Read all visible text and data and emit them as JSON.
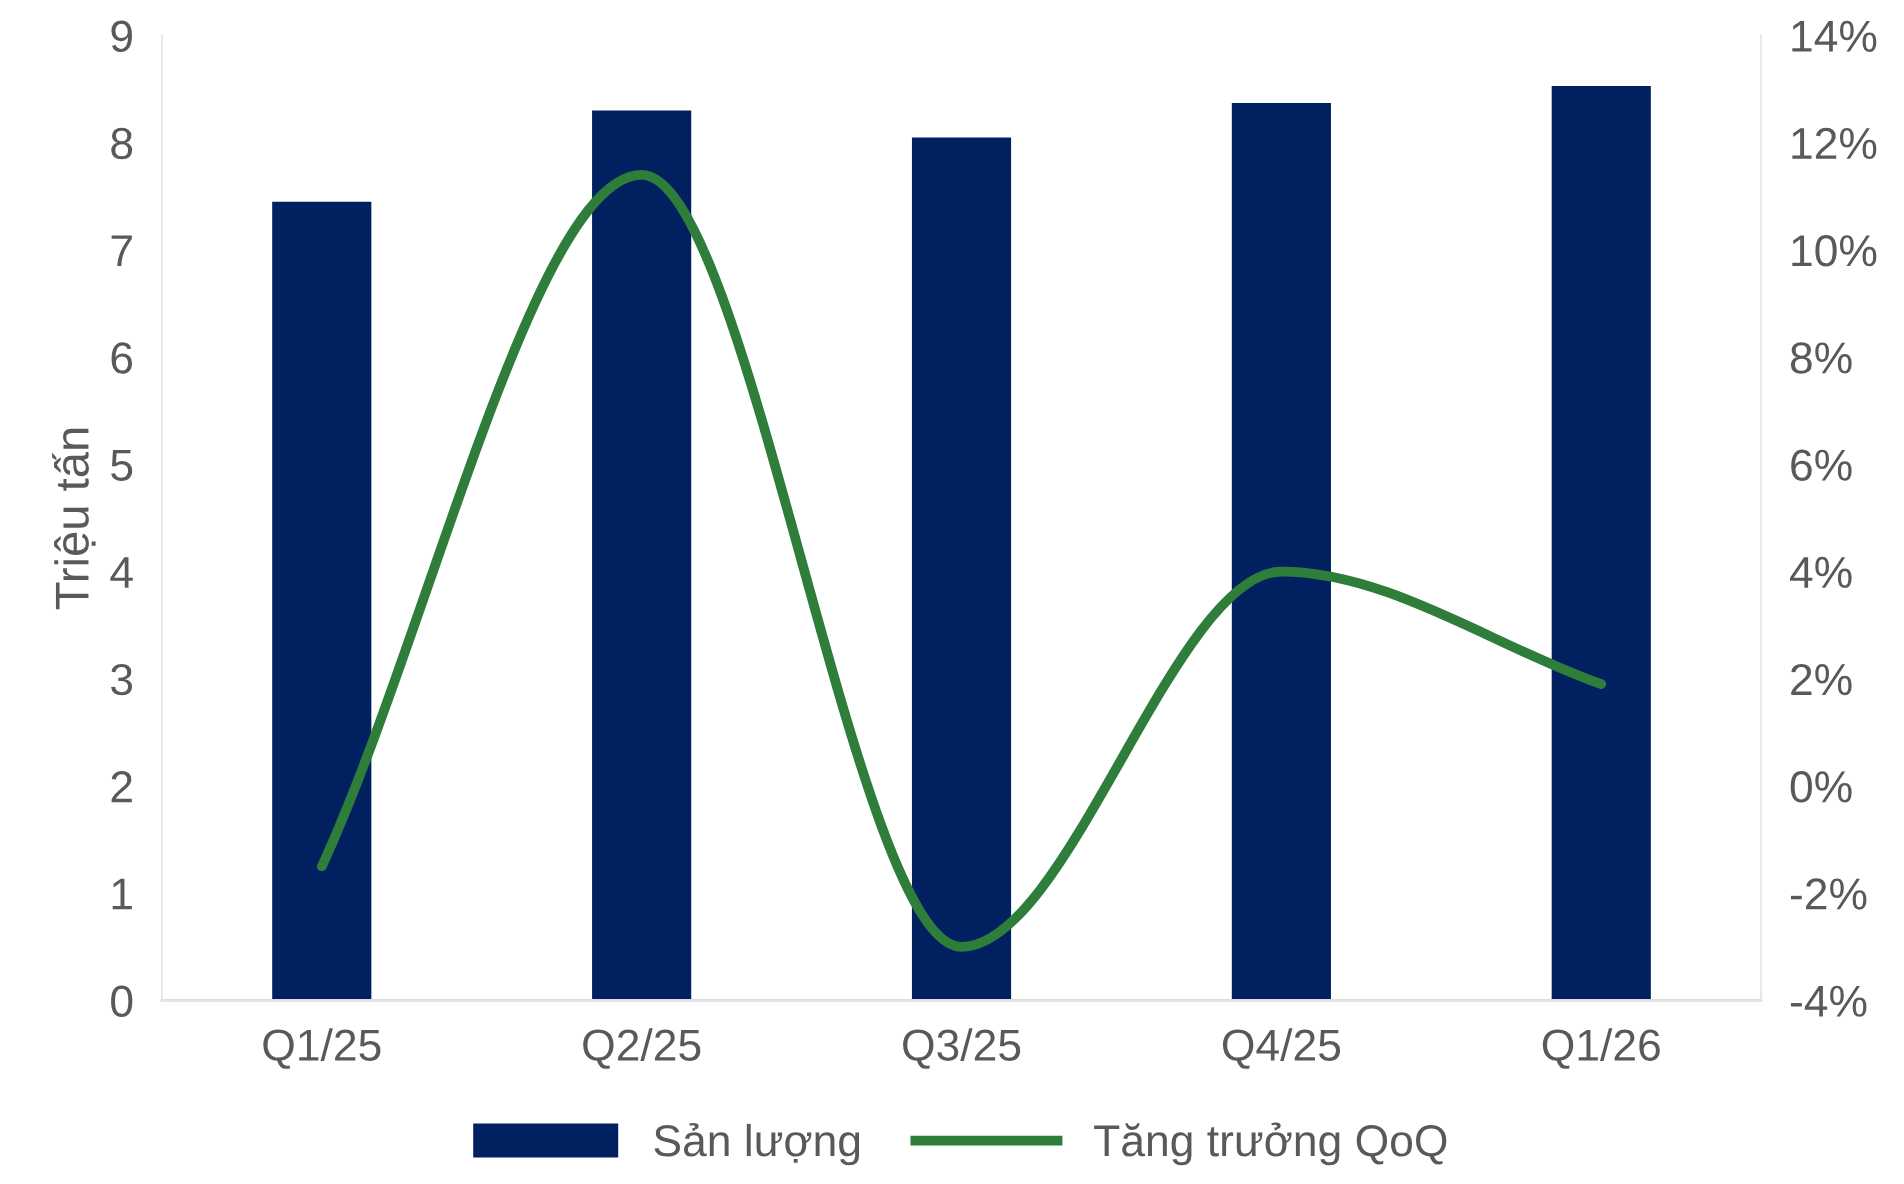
{
  "chart_data": {
    "type": "bar",
    "ylabel": "Triệu tấn",
    "categories": [
      "Q1/25",
      "Q2/25",
      "Q3/25",
      "Q4/25",
      "Q1/26"
    ],
    "series": [
      {
        "name": "Sản lượng",
        "color": "#002060",
        "values": [
          7.45,
          8.3,
          8.05,
          8.37,
          8.53
        ]
      },
      {
        "name": "Tăng trưởng QoQ",
        "type": "line",
        "axis": "y2",
        "color": "#2e7d3a",
        "values": [
          -1.5,
          11.4,
          -3.0,
          4.0,
          1.9
        ]
      }
    ],
    "ylim": [
      0,
      9
    ],
    "yticks": [
      0,
      1,
      2,
      3,
      4,
      5,
      6,
      7,
      8,
      9
    ],
    "y2lim": [
      -4,
      14
    ],
    "y2ticks": [
      {
        "value": -4,
        "label": "-4%"
      },
      {
        "value": -2,
        "label": "-2%"
      },
      {
        "value": 0,
        "label": "0%"
      },
      {
        "value": 2,
        "label": "2%"
      },
      {
        "value": 4,
        "label": "4%"
      },
      {
        "value": 6,
        "label": "6%"
      },
      {
        "value": 8,
        "label": "8%"
      },
      {
        "value": 10,
        "label": "10%"
      },
      {
        "value": 12,
        "label": "12%"
      },
      {
        "value": 14,
        "label": "14%"
      }
    ],
    "grid": false,
    "legend": "bottom",
    "marker": "none",
    "line_style": "solid"
  }
}
